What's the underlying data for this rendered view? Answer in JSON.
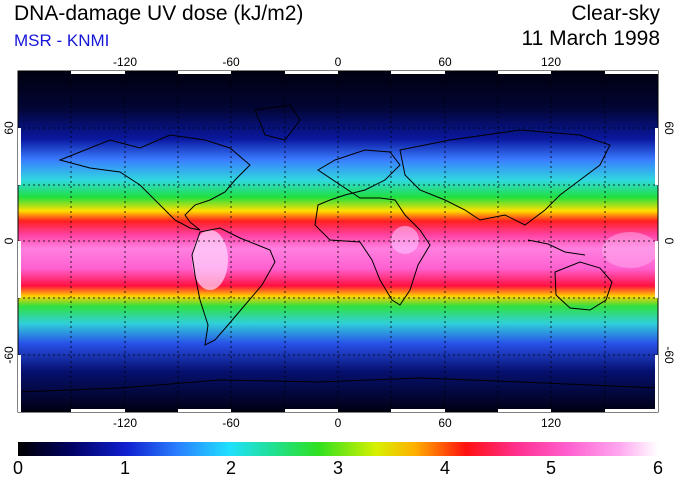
{
  "header": {
    "title": "DNA-damage UV dose (kJ/m2)",
    "source": "MSR - KNMI",
    "mode": "Clear-sky",
    "date": "11 March 1998"
  },
  "map": {
    "projection": "equirectangular",
    "lon_range": [
      -180,
      180
    ],
    "lat_range": [
      -90,
      90
    ],
    "lon_ticks": [
      "-120",
      "-60",
      "0",
      "60",
      "120"
    ],
    "lat_ticks": [
      "60",
      "0",
      "-60"
    ],
    "lat_ticks_right": [
      "60",
      "0",
      "-60"
    ],
    "gridline_style": "dashed"
  },
  "colorbar": {
    "min": 0,
    "max": 6,
    "labels": [
      "0",
      "1",
      "2",
      "3",
      "4",
      "5",
      "6"
    ],
    "colors": [
      "#000033",
      "#1020c8",
      "#30b8ff",
      "#10d850",
      "#ffe000",
      "#ff1020",
      "#ff50c8",
      "#ffffff"
    ]
  },
  "colors": {
    "polar": "#000014",
    "source_text": "#1515d8",
    "coastline": "#000000"
  }
}
